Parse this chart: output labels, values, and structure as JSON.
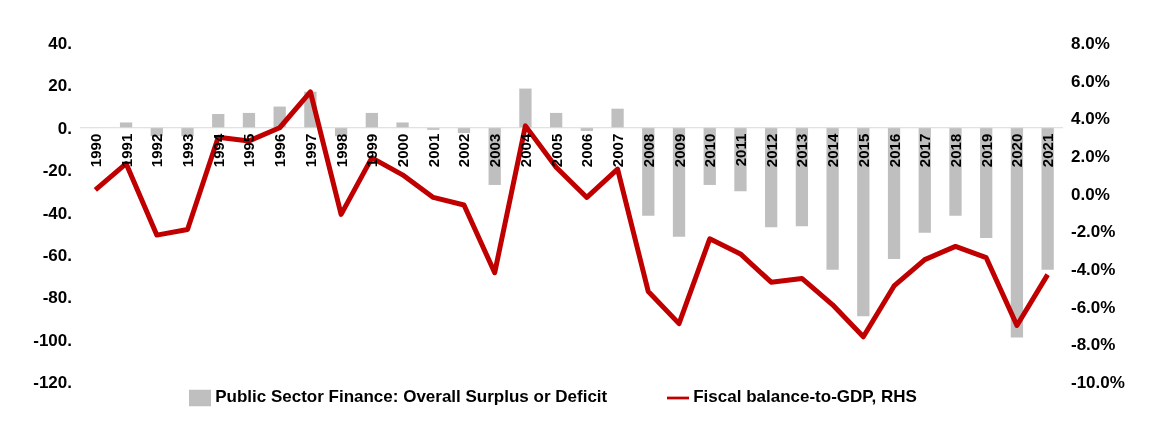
{
  "chart_data": {
    "type": "bar",
    "categories": [
      "1990",
      "1991",
      "1992",
      "1993",
      "1994",
      "1995",
      "1996",
      "1997",
      "1998",
      "1999",
      "2000",
      "2001",
      "2002",
      "2003",
      "2004",
      "2005",
      "2006",
      "2007",
      "2008",
      "2009",
      "2010",
      "2011",
      "2012",
      "2013",
      "2014",
      "2015",
      "2016",
      "2017",
      "2018",
      "2019",
      "2020",
      "2021"
    ],
    "series": [
      {
        "name": "Public Sector Finance: Overall Surplus or Deficit",
        "color": "#bfbfbf",
        "values": [
          0,
          2.5,
          -4,
          -4,
          6.5,
          7,
          10,
          17,
          -4,
          7,
          2.5,
          -1,
          -2.5,
          -27,
          18.5,
          7,
          -1.5,
          9,
          -41.5,
          -51.5,
          -27,
          -30,
          -47,
          -46.5,
          -67,
          -89,
          -62,
          -49.5,
          -41.5,
          -52,
          -99,
          -67
        ]
      },
      {
        "name": "Fiscal balance-to-GDP, RHS",
        "type": "line",
        "axis": "y2",
        "color": "#c00000",
        "values": [
          0.2,
          1.6,
          -2.2,
          -1.9,
          3.0,
          2.8,
          3.5,
          5.4,
          -1.1,
          1.9,
          1.0,
          -0.2,
          -0.6,
          -4.2,
          3.6,
          1.4,
          -0.2,
          1.3,
          -5.2,
          -6.9,
          -2.4,
          -3.2,
          -4.7,
          -4.5,
          -5.9,
          -7.6,
          -4.9,
          -3.5,
          -2.8,
          -3.4,
          -7.0,
          -4.3
        ]
      }
    ],
    "ylim": [
      -120,
      40
    ],
    "yticks": [
      {
        "value": 40,
        "label": "40."
      },
      {
        "value": 20,
        "label": "20."
      },
      {
        "value": 0,
        "label": "0."
      },
      {
        "value": -20,
        "label": "-20."
      },
      {
        "value": -40,
        "label": "-40."
      },
      {
        "value": -60,
        "label": "-60."
      },
      {
        "value": -80,
        "label": "-80."
      },
      {
        "value": -100,
        "label": "-100."
      },
      {
        "value": -120,
        "label": "-120."
      }
    ],
    "y2lim": [
      -10,
      8
    ],
    "y2ticks": [
      {
        "value": 8,
        "label": "8.0%"
      },
      {
        "value": 6,
        "label": "6.0%"
      },
      {
        "value": 4,
        "label": "4.0%"
      },
      {
        "value": 2,
        "label": "2.0%"
      },
      {
        "value": 0,
        "label": "0.0%"
      },
      {
        "value": -2,
        "label": "-2.0%"
      },
      {
        "value": -4,
        "label": "-4.0%"
      },
      {
        "value": -6,
        "label": "-6.0%"
      },
      {
        "value": -8,
        "label": "-8.0%"
      },
      {
        "value": -10,
        "label": "-10.0%"
      }
    ],
    "grid": false,
    "legend": "bottom",
    "marker": "none",
    "line_style": "solid"
  }
}
